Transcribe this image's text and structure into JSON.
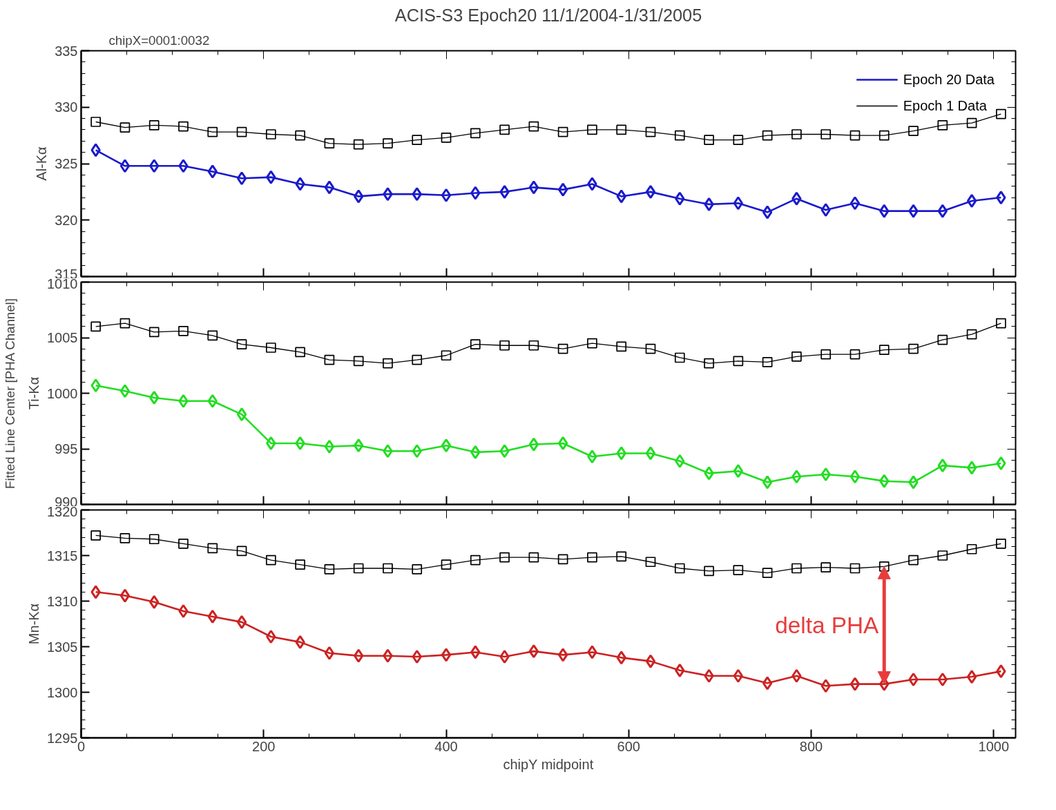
{
  "chart_data": [
    {
      "type": "line",
      "title": "ACIS-S3 Epoch20 11/1/2004-1/31/2005",
      "ylabel": "Al-Kα",
      "annotations": [
        "chipX=0001:0032"
      ],
      "x": [
        16,
        48,
        80,
        112,
        144,
        176,
        208,
        240,
        272,
        304,
        336,
        368,
        400,
        432,
        464,
        496,
        528,
        560,
        592,
        624,
        656,
        688,
        720,
        752,
        784,
        816,
        848,
        880,
        912,
        944,
        976,
        1008
      ],
      "series": [
        {
          "name": "Epoch 20 Data",
          "color": "#1a1acc",
          "marker": "diamond",
          "values": [
            326.2,
            324.8,
            324.8,
            324.8,
            324.3,
            323.7,
            323.8,
            323.2,
            322.9,
            322.1,
            322.3,
            322.3,
            322.2,
            322.4,
            322.5,
            322.9,
            322.7,
            323.2,
            322.1,
            322.5,
            321.9,
            321.4,
            321.5,
            320.7,
            321.9,
            320.9,
            321.5,
            320.8,
            320.8,
            320.8,
            321.7,
            322.0
          ]
        },
        {
          "name": "Epoch 1 Data",
          "color": "#000000",
          "marker": "square",
          "values": [
            328.7,
            328.2,
            328.4,
            328.3,
            327.8,
            327.8,
            327.6,
            327.5,
            326.8,
            326.7,
            326.8,
            327.1,
            327.3,
            327.7,
            328.0,
            328.3,
            327.8,
            328.0,
            328.0,
            327.8,
            327.5,
            327.1,
            327.1,
            327.5,
            327.6,
            327.6,
            327.5,
            327.5,
            327.9,
            328.4,
            328.6,
            329.4
          ]
        }
      ],
      "xlim": [
        0,
        1024
      ],
      "ylim": [
        315,
        335
      ],
      "yticks": [
        315,
        320,
        325,
        330,
        335
      ],
      "tick_labels": "y",
      "legend": "top right",
      "grid": false
    },
    {
      "type": "line",
      "ylabel": "Ti-Kα",
      "annotations": [
        "Fitted Line Center [PHA Channel]"
      ],
      "x": [
        16,
        48,
        80,
        112,
        144,
        176,
        208,
        240,
        272,
        304,
        336,
        368,
        400,
        432,
        464,
        496,
        528,
        560,
        592,
        624,
        656,
        688,
        720,
        752,
        784,
        816,
        848,
        880,
        912,
        944,
        976,
        1008
      ],
      "series": [
        {
          "color": "#22dd22",
          "marker": "diamond",
          "values": [
            1000.7,
            1000.2,
            999.6,
            999.3,
            999.3,
            998.1,
            995.5,
            995.5,
            995.2,
            995.3,
            994.8,
            994.8,
            995.3,
            994.7,
            994.8,
            995.4,
            995.5,
            994.3,
            994.6,
            994.6,
            993.9,
            992.8,
            993.0,
            992.0,
            992.5,
            992.7,
            992.5,
            992.1,
            992.0,
            993.5,
            993.3,
            993.7
          ]
        },
        {
          "color": "#000000",
          "marker": "square",
          "values": [
            1006.0,
            1006.3,
            1005.5,
            1005.6,
            1005.2,
            1004.4,
            1004.1,
            1003.7,
            1003.0,
            1002.9,
            1002.7,
            1003.0,
            1003.4,
            1004.4,
            1004.3,
            1004.3,
            1004.0,
            1004.5,
            1004.2,
            1004.0,
            1003.2,
            1002.7,
            1002.9,
            1002.8,
            1003.3,
            1003.5,
            1003.5,
            1003.9,
            1004.0,
            1004.8,
            1005.3,
            1006.3
          ]
        }
      ],
      "xlim": [
        0,
        1024
      ],
      "ylim": [
        990,
        1010
      ],
      "yticks": [
        990,
        995,
        1000,
        1005,
        1010
      ],
      "tick_labels": "y",
      "grid": false
    },
    {
      "type": "line",
      "ylabel": "Mn-Kα",
      "xlabel": "chipY midpoint",
      "annotations": [
        {
          "text": "delta PHA",
          "x": 880,
          "y": 1313.8
        }
      ],
      "x": [
        16,
        48,
        80,
        112,
        144,
        176,
        208,
        240,
        272,
        304,
        336,
        368,
        400,
        432,
        464,
        496,
        528,
        560,
        592,
        624,
        656,
        688,
        720,
        752,
        784,
        816,
        848,
        880,
        912,
        944,
        976,
        1008
      ],
      "series": [
        {
          "color": "#cc2222",
          "marker": "diamond",
          "values": [
            1311.0,
            1310.6,
            1309.9,
            1308.9,
            1308.3,
            1307.7,
            1306.1,
            1305.5,
            1304.3,
            1304.0,
            1304.0,
            1303.9,
            1304.1,
            1304.4,
            1303.9,
            1304.5,
            1304.1,
            1304.4,
            1303.8,
            1303.4,
            1302.4,
            1301.8,
            1301.8,
            1301.0,
            1301.8,
            1300.7,
            1300.9,
            1300.9,
            1301.4,
            1301.4,
            1301.7,
            1302.3
          ]
        },
        {
          "color": "#000000",
          "marker": "square",
          "values": [
            1317.2,
            1316.9,
            1316.8,
            1316.3,
            1315.8,
            1315.5,
            1314.5,
            1314.0,
            1313.5,
            1313.6,
            1313.6,
            1313.5,
            1314.0,
            1314.5,
            1314.8,
            1314.8,
            1314.6,
            1314.8,
            1314.9,
            1314.3,
            1313.6,
            1313.3,
            1313.4,
            1313.1,
            1313.6,
            1313.7,
            1313.6,
            1313.8,
            1314.5,
            1315.0,
            1315.7,
            1316.3
          ]
        }
      ],
      "xlim": [
        0,
        1024
      ],
      "ylim": [
        1295,
        1320
      ],
      "yticks": [
        1295,
        1300,
        1305,
        1310,
        1315,
        1320
      ],
      "xticks": [
        0,
        200,
        400,
        600,
        800,
        1000
      ],
      "grid": false
    }
  ]
}
